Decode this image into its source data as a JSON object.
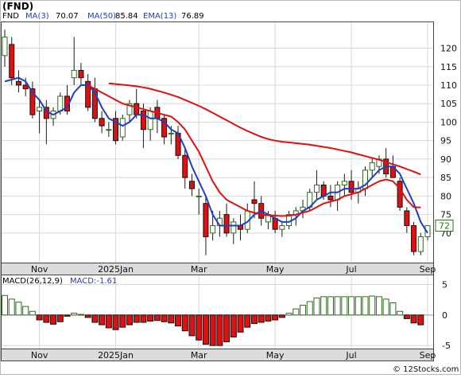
{
  "ticker_label": "(FND)",
  "legend": {
    "symbol": "FND",
    "ma3": "MA(3)",
    "ma3_value": "70.07",
    "ma50": "MA(50)",
    "ma50_value": "85.84",
    "ema13": "EMA(13)",
    "ema13_value": "76.89"
  },
  "macd_legend": {
    "label": "MACD(26,12,9)",
    "value_label": "MACD:-1.61"
  },
  "current_price_label": "72",
  "copyright": "© 12Stocks.com",
  "chart_data": [
    {
      "type": "candlestick",
      "title": "(FND)",
      "ylim": [
        62,
        127
      ],
      "yticks": [
        70,
        75,
        80,
        85,
        90,
        95,
        100,
        105,
        110,
        115,
        120
      ],
      "xtick_labels": [
        "Nov",
        "2025Jan",
        "Mar",
        "May",
        "Jul",
        "Sep"
      ],
      "xtick_index": [
        5,
        16,
        28,
        39,
        50,
        61
      ],
      "up_color": "#2f6b1f",
      "down_color": "#dd1111",
      "candles": [
        {
          "o": 118,
          "h": 125,
          "l": 115,
          "c": 123
        },
        {
          "o": 121,
          "h": 123,
          "l": 110,
          "c": 112
        },
        {
          "o": 111,
          "h": 114,
          "l": 108,
          "c": 110
        },
        {
          "o": 110,
          "h": 112,
          "l": 107,
          "c": 109
        },
        {
          "o": 109,
          "h": 111,
          "l": 101,
          "c": 102
        },
        {
          "o": 103,
          "h": 106,
          "l": 97,
          "c": 104
        },
        {
          "o": 104,
          "h": 106,
          "l": 94,
          "c": 101
        },
        {
          "o": 101,
          "h": 104,
          "l": 99,
          "c": 103
        },
        {
          "o": 103,
          "h": 108,
          "l": 102,
          "c": 107
        },
        {
          "o": 107,
          "h": 110,
          "l": 102,
          "c": 103
        },
        {
          "o": 112,
          "h": 123,
          "l": 110,
          "c": 114
        },
        {
          "o": 114,
          "h": 116,
          "l": 110,
          "c": 112
        },
        {
          "o": 111,
          "h": 113,
          "l": 103,
          "c": 104
        },
        {
          "o": 109,
          "h": 112,
          "l": 100,
          "c": 101
        },
        {
          "o": 101,
          "h": 103,
          "l": 97,
          "c": 99
        },
        {
          "o": 98,
          "h": 100,
          "l": 96,
          "c": 98
        },
        {
          "o": 101,
          "h": 103,
          "l": 94,
          "c": 95
        },
        {
          "o": 96,
          "h": 102,
          "l": 95,
          "c": 101
        },
        {
          "o": 102,
          "h": 106,
          "l": 100,
          "c": 105
        },
        {
          "o": 105,
          "h": 109,
          "l": 101,
          "c": 102
        },
        {
          "o": 103,
          "h": 105,
          "l": 93,
          "c": 98
        },
        {
          "o": 98,
          "h": 104,
          "l": 95,
          "c": 103
        },
        {
          "o": 104,
          "h": 106,
          "l": 97,
          "c": 101
        },
        {
          "o": 101,
          "h": 102,
          "l": 94,
          "c": 96
        },
        {
          "o": 97,
          "h": 99,
          "l": 94,
          "c": 97
        },
        {
          "o": 97,
          "h": 99,
          "l": 90,
          "c": 91
        },
        {
          "o": 91,
          "h": 93,
          "l": 82,
          "c": 85
        },
        {
          "o": 84,
          "h": 86,
          "l": 80,
          "c": 82
        },
        {
          "o": 80,
          "h": 82,
          "l": 75,
          "c": 80
        },
        {
          "o": 78,
          "h": 80,
          "l": 64,
          "c": 69
        },
        {
          "o": 70,
          "h": 76,
          "l": 68,
          "c": 72
        },
        {
          "o": 72,
          "h": 76,
          "l": 69,
          "c": 74
        },
        {
          "o": 75,
          "h": 78,
          "l": 69,
          "c": 70
        },
        {
          "o": 70,
          "h": 74,
          "l": 67,
          "c": 73
        },
        {
          "o": 72,
          "h": 75,
          "l": 68,
          "c": 71
        },
        {
          "o": 71,
          "h": 78,
          "l": 70,
          "c": 76
        },
        {
          "o": 79,
          "h": 84,
          "l": 74,
          "c": 78
        },
        {
          "o": 78,
          "h": 80,
          "l": 72,
          "c": 74
        },
        {
          "o": 73,
          "h": 76,
          "l": 71,
          "c": 75
        },
        {
          "o": 74,
          "h": 76,
          "l": 70,
          "c": 71
        },
        {
          "o": 71,
          "h": 73,
          "l": 69,
          "c": 72
        },
        {
          "o": 72,
          "h": 76,
          "l": 71,
          "c": 75
        },
        {
          "o": 75,
          "h": 77,
          "l": 72,
          "c": 76
        },
        {
          "o": 76,
          "h": 79,
          "l": 74,
          "c": 77
        },
        {
          "o": 77,
          "h": 82,
          "l": 76,
          "c": 81
        },
        {
          "o": 81,
          "h": 87,
          "l": 79,
          "c": 83
        },
        {
          "o": 83,
          "h": 84,
          "l": 79,
          "c": 80
        },
        {
          "o": 80,
          "h": 83,
          "l": 77,
          "c": 79
        },
        {
          "o": 79,
          "h": 84,
          "l": 76,
          "c": 83
        },
        {
          "o": 83,
          "h": 86,
          "l": 80,
          "c": 84
        },
        {
          "o": 84,
          "h": 87,
          "l": 79,
          "c": 81
        },
        {
          "o": 81,
          "h": 84,
          "l": 78,
          "c": 82
        },
        {
          "o": 82,
          "h": 88,
          "l": 80,
          "c": 87
        },
        {
          "o": 87,
          "h": 90,
          "l": 85,
          "c": 89
        },
        {
          "o": 88,
          "h": 91,
          "l": 86,
          "c": 90
        },
        {
          "o": 90,
          "h": 93,
          "l": 85,
          "c": 86
        },
        {
          "o": 88,
          "h": 91,
          "l": 85,
          "c": 85
        },
        {
          "o": 84,
          "h": 85,
          "l": 76,
          "c": 77
        },
        {
          "o": 76,
          "h": 77,
          "l": 70,
          "c": 72
        },
        {
          "o": 72,
          "h": 73,
          "l": 64,
          "c": 65
        },
        {
          "o": 65,
          "h": 70,
          "l": 64,
          "c": 69
        },
        {
          "o": 69,
          "h": 72,
          "l": 68,
          "c": 72
        }
      ],
      "series": [
        {
          "name": "MA(3)",
          "color": "#1f3fbf",
          "values": [
            111,
            111.5,
            112,
            111,
            108,
            106,
            103,
            102,
            103,
            104,
            108,
            110,
            110,
            108,
            104,
            101,
            100,
            99,
            100,
            102,
            102,
            101,
            101,
            100,
            98,
            97,
            93,
            88,
            84,
            80,
            75,
            72,
            72,
            72,
            72,
            73,
            75,
            76,
            75,
            74,
            73,
            73,
            74,
            76,
            77,
            79,
            80,
            81,
            81,
            82,
            82,
            82,
            83,
            85,
            87,
            88,
            88,
            86,
            82,
            78,
            73,
            70
          ]
        },
        {
          "name": "EMA(13)",
          "color": "#dd1111",
          "values": [
            null,
            null,
            null,
            null,
            null,
            null,
            null,
            null,
            null,
            null,
            null,
            null,
            110,
            109,
            108,
            107,
            106,
            105,
            104.5,
            104,
            103.5,
            103,
            102.5,
            102,
            101.5,
            100,
            98,
            95,
            92,
            88,
            84,
            81,
            79,
            78,
            77,
            76,
            75.5,
            75,
            74.8,
            74.7,
            74.6,
            74.7,
            75,
            75.5,
            76,
            77,
            78,
            78.5,
            79,
            80,
            80.5,
            81,
            82,
            83,
            84,
            84.5,
            84,
            82,
            79,
            77,
            76.9
          ]
        },
        {
          "name": "MA(50)",
          "color": "#dd1111",
          "values": [
            null,
            null,
            null,
            null,
            null,
            null,
            null,
            null,
            null,
            null,
            null,
            null,
            null,
            null,
            null,
            110.5,
            110.3,
            110.1,
            109.9,
            109.7,
            109.4,
            109,
            108.5,
            108,
            107.4,
            106.8,
            106,
            105.2,
            104.4,
            103.5,
            102.5,
            101.5,
            100.5,
            99.5,
            98.5,
            97.6,
            96.8,
            96,
            95.4,
            95,
            94.7,
            94.5,
            94.3,
            94.1,
            93.9,
            93.6,
            93.3,
            93,
            92.6,
            92.2,
            91.8,
            91.3,
            90.8,
            90.3,
            89.8,
            89.2,
            88.6,
            88,
            87.3,
            86.6,
            85.84
          ]
        }
      ]
    },
    {
      "type": "bar",
      "title": "MACD(26,12,9)",
      "ylim": [
        -5.5,
        6.5
      ],
      "yticks": [
        -5,
        0,
        5
      ],
      "xtick_labels": [
        "Nov",
        "2025Jan",
        "Mar",
        "May",
        "Jul",
        "Sep"
      ],
      "xtick_index": [
        5,
        16,
        28,
        39,
        50,
        61
      ],
      "positive_color": "#2f6b1f",
      "negative_color": "#dd1111",
      "values": [
        3.2,
        2.6,
        2.1,
        1.4,
        0.6,
        -0.8,
        -1.2,
        -1.5,
        -1.1,
        -0.2,
        0.3,
        0.1,
        -0.4,
        -1.2,
        -1.6,
        -2.1,
        -2.4,
        -2.0,
        -1.6,
        -1.2,
        -1.2,
        -1.0,
        -0.9,
        -1.1,
        -1.3,
        -1.8,
        -2.6,
        -3.4,
        -4.1,
        -4.8,
        -5.0,
        -5.0,
        -4.4,
        -3.6,
        -2.8,
        -2.0,
        -1.4,
        -1.2,
        -1.0,
        -0.8,
        -0.4,
        0.3,
        1.0,
        1.6,
        2.2,
        2.8,
        3.0,
        3.0,
        3.0,
        3.0,
        3.0,
        3.0,
        3.0,
        3.1,
        3.0,
        2.6,
        2.0,
        0.6,
        -0.6,
        -1.3,
        -1.61
      ]
    }
  ]
}
